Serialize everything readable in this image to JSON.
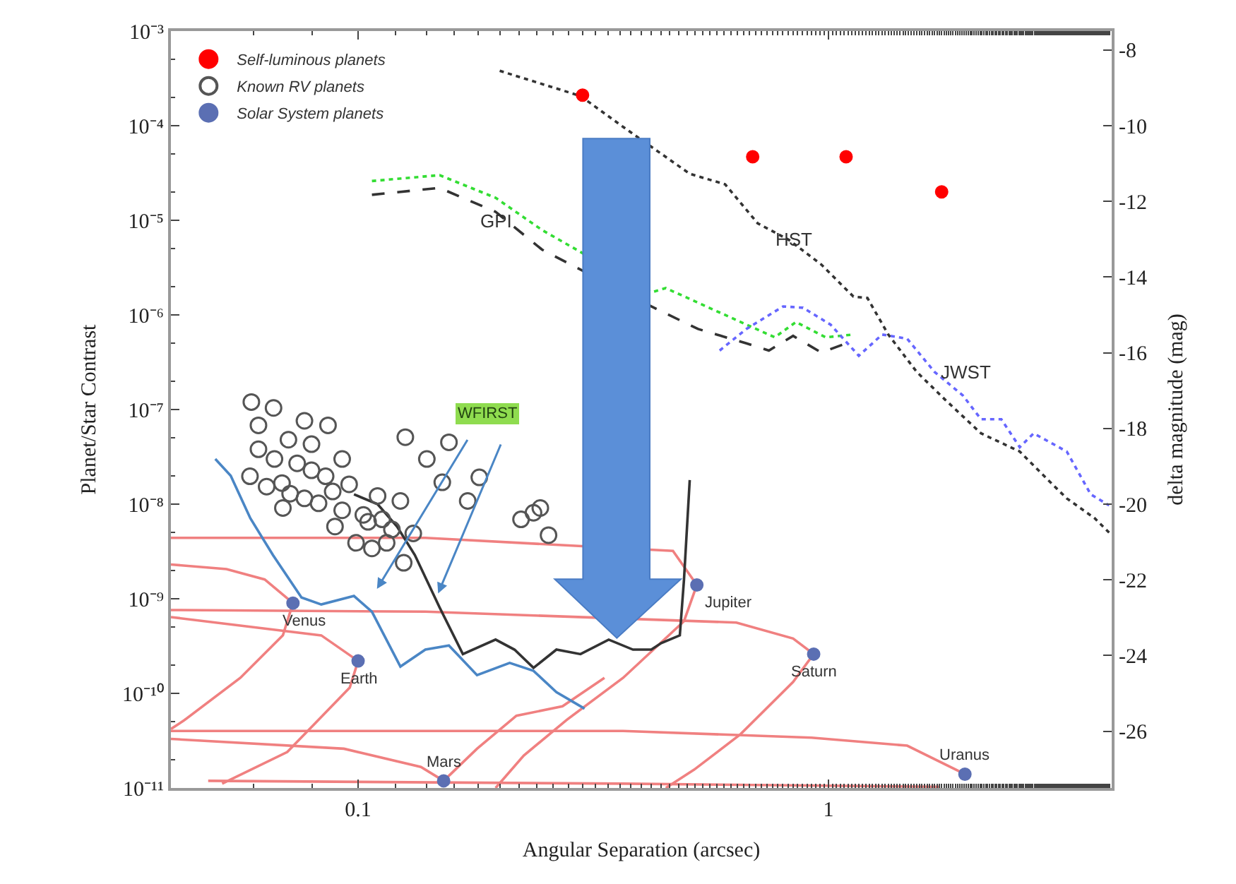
{
  "chart_data": {
    "type": "scatter",
    "xlabel": "Angular Separation (arcsec)",
    "ylabel": "Planet/Star Contrast",
    "y2label": "delta magnitude (mag)",
    "log": "xy",
    "legend": "top left",
    "xlim": [
      0.04,
      4
    ],
    "xticks": [
      0.1,
      1
    ],
    "ylim": [
      1e-11,
      0.001
    ],
    "yticks": [
      {
        "value": 0.001,
        "label": "10⁻³"
      },
      {
        "value": 0.0001,
        "label": "10⁻⁴"
      },
      {
        "value": 1e-05,
        "label": "10⁻⁵"
      },
      {
        "value": 1e-06,
        "label": "10⁻⁶"
      },
      {
        "value": 1e-07,
        "label": "10⁻⁷"
      },
      {
        "value": 1e-08,
        "label": "10⁻⁸"
      },
      {
        "value": 1e-09,
        "label": "10⁻⁹"
      },
      {
        "value": 1e-10,
        "label": "10⁻¹⁰"
      },
      {
        "value": 1e-11,
        "label": "10⁻¹¹"
      }
    ],
    "y2lim": [
      -27.5,
      -7.5
    ],
    "y2ticks": [
      -8,
      -10,
      -12,
      -14,
      -16,
      -18,
      -20,
      -22,
      -24,
      -26
    ],
    "series": [
      {
        "type": "line",
        "color": "#f08080",
        "line_style": "solid",
        "marker": "none",
        "x": [
          0.04,
          0.139,
          0.467,
          0.525,
          0.493,
          0.366,
          0.277,
          0.225,
          0.196
        ],
        "values": [
          4.4e-09,
          4.4e-09,
          3.2e-09,
          1.4e-09,
          5.8e-10,
          1.46e-10,
          5.2e-11,
          2.2e-11,
          1e-11
        ]
      },
      {
        "type": "line",
        "color": "#f08080",
        "line_style": "solid",
        "marker": "none",
        "x": [
          0.04,
          0.139,
          0.637,
          0.841,
          0.93,
          0.841,
          0.65,
          0.518,
          0.451
        ],
        "values": [
          7.6e-10,
          7.3e-10,
          5.6e-10,
          3.8e-10,
          2.6e-10,
          1.32e-10,
          3.7e-11,
          1.56e-11,
          1e-11
        ]
      },
      {
        "type": "line",
        "color": "#f08080",
        "line_style": "solid",
        "marker": "none",
        "x": [
          0.04,
          0.0525,
          0.0633,
          0.0727,
          0.0692,
          0.0562,
          0.0427,
          0.04
        ],
        "values": [
          2.3e-09,
          2.06e-09,
          1.6e-09,
          9e-10,
          4.1e-10,
          1.46e-10,
          5.2e-11,
          4.2e-11
        ]
      },
      {
        "type": "line",
        "color": "#f08080",
        "line_style": "solid",
        "marker": "none",
        "x": [
          0.04,
          0.0835,
          0.1,
          0.096,
          0.0707,
          0.0514
        ],
        "values": [
          6.4e-10,
          4.1e-10,
          2.2e-10,
          1.15e-10,
          2.4e-11,
          1.11e-11
        ]
      },
      {
        "type": "line",
        "color": "#f08080",
        "line_style": "solid",
        "marker": "none",
        "x": [
          0.04,
          0.366,
          0.92,
          1.47,
          1.95
        ],
        "values": [
          4e-11,
          4e-11,
          3.4e-11,
          2.8e-11,
          1.4e-11
        ]
      },
      {
        "type": "line",
        "color": "#f08080",
        "line_style": "solid",
        "marker": "none",
        "x": [
          0.04,
          0.0933,
          0.136,
          0.152,
          0.179,
          0.217,
          0.272,
          0.334
        ],
        "values": [
          3.3e-11,
          2.6e-11,
          1.67e-11,
          1.19e-11,
          2.6e-11,
          5.8e-11,
          7.3e-11,
          1.46e-10
        ]
      },
      {
        "type": "line",
        "color": "#f08080",
        "line_style": "solid",
        "marker": "none",
        "x": [
          0.048,
          0.366,
          1.72
        ],
        "values": [
          1.19e-11,
          1.11e-11,
          1.03e-11
        ]
      },
      {
        "type": "line",
        "color": "#333333",
        "line_style": "dotted",
        "marker": "none",
        "x": [
          0.2,
          0.297,
          0.366,
          0.507,
          0.603,
          0.707,
          0.824,
          0.966,
          1.13,
          1.21,
          1.34,
          1.54,
          1.77,
          2.11,
          2.55,
          2.93,
          3.21,
          3.68,
          3.95
        ],
        "values": [
          0.00038,
          0.000206,
          9.7e-05,
          3.1e-05,
          2.4e-05,
          9.3e-06,
          6.2e-06,
          3.4e-06,
          1.56e-06,
          1.51e-06,
          6.2e-07,
          2.5e-07,
          1.27e-07,
          5.6e-08,
          3.6e-08,
          1.8e-08,
          1.15e-08,
          7.1e-09,
          5e-09
        ]
      },
      {
        "type": "line",
        "color": "#333333",
        "line_style": "dashed",
        "marker": "none",
        "x": [
          0.107,
          0.149,
          0.196,
          0.246,
          0.42,
          0.528,
          0.669,
          0.747,
          0.841,
          0.966,
          1.09
        ],
        "values": [
          1.86e-05,
          2.2e-05,
          1.23e-05,
          4.9e-06,
          1.23e-06,
          7.1e-07,
          5e-07,
          4.2e-07,
          6e-07,
          4e-07,
          5e-07
        ]
      },
      {
        "type": "line",
        "color": "#33dd33",
        "line_style": "dotted",
        "marker": "none",
        "x": [
          0.107,
          0.149,
          0.196,
          0.246,
          0.42,
          0.451,
          0.669,
          0.769,
          0.853,
          0.986,
          1.13
        ],
        "values": [
          2.6e-05,
          3e-05,
          1.73e-05,
          7.9e-06,
          1.73e-06,
          1.92e-06,
          7.9e-07,
          5.8e-07,
          8.4e-07,
          5.8e-07,
          6.2e-07
        ]
      },
      {
        "type": "line",
        "color": "#6666ff",
        "line_style": "dotted",
        "marker": "none",
        "x": [
          0.587,
          0.669,
          0.801,
          0.883,
          1.01,
          1.16,
          1.3,
          1.47,
          1.68,
          1.93,
          2.11,
          2.33,
          2.55,
          2.73,
          3.21,
          3.61,
          3.95
        ],
        "values": [
          4.2e-07,
          7.1e-07,
          1.23e-06,
          1.19e-06,
          7.9e-07,
          3.7e-07,
          6.2e-07,
          5.6e-07,
          2.5e-07,
          1.41e-07,
          7.9e-08,
          7.9e-08,
          4e-08,
          5.6e-08,
          3.6e-08,
          1.27e-08,
          9.7e-09
        ]
      },
      {
        "type": "line",
        "color": "#333333",
        "line_style": "solid",
        "marker": "none",
        "x": [
          0.098,
          0.11,
          0.121,
          0.132,
          0.149,
          0.167,
          0.196,
          0.215,
          0.236,
          0.264,
          0.297,
          0.341,
          0.384,
          0.42,
          0.441,
          0.483,
          0.493,
          0.507
        ],
        "values": [
          1.27e-08,
          1e-08,
          5.8e-09,
          2.9e-09,
          8.1e-10,
          2.6e-10,
          3.7e-10,
          2.9e-10,
          1.86e-10,
          2.9e-10,
          2.6e-10,
          3.7e-10,
          2.9e-10,
          2.9e-10,
          3.4e-10,
          4.1e-10,
          1.6e-09,
          1.8e-08
        ]
      },
      {
        "type": "line",
        "color": "#4a86c5",
        "line_style": "solid",
        "marker": "none",
        "x": [
          0.0497,
          0.0536,
          0.059,
          0.0659,
          0.0758,
          0.0835,
          0.098,
          0.107,
          0.123,
          0.139,
          0.156,
          0.179,
          0.21,
          0.236,
          0.264,
          0.303
        ],
        "values": [
          3e-08,
          2e-08,
          7.1e-09,
          2.9e-09,
          1.03e-09,
          8.7e-10,
          1.07e-09,
          7.3e-10,
          1.92e-10,
          2.9e-10,
          3.2e-10,
          1.56e-10,
          2.1e-10,
          1.73e-10,
          1.03e-10,
          6.9e-11
        ]
      },
      {
        "name": "Self-luminous planets",
        "color": "#ff0000",
        "marker": "circle",
        "x": [
          0.3,
          0.69,
          1.09,
          1.74
        ],
        "values": [
          0.00021,
          4.7e-05,
          4.7e-05,
          2e-05
        ]
      },
      {
        "name": "Known RV planets",
        "color": "#555555",
        "marker": "circle-open",
        "x": [
          0.0593,
          0.0661,
          0.0614,
          0.0769,
          0.0863,
          0.0711,
          0.0796,
          0.0614,
          0.0664,
          0.0742,
          0.0925,
          0.0589,
          0.0639,
          0.0689,
          0.0796,
          0.0853,
          0.0957,
          0.0717,
          0.0769,
          0.0824,
          0.0883,
          0.0692,
          0.0893,
          0.0925,
          0.1026,
          0.11,
          0.105,
          0.1125,
          0.118,
          0.123,
          0.131,
          0.099,
          0.107,
          0.115,
          0.125,
          0.126,
          0.14,
          0.156,
          0.151,
          0.171,
          0.181,
          0.222,
          0.236,
          0.244,
          0.254
        ],
        "values": [
          1.2e-07,
          1.04e-07,
          6.8e-08,
          7.6e-08,
          6.8e-08,
          4.8e-08,
          4.3e-08,
          3.8e-08,
          3e-08,
          2.7e-08,
          3e-08,
          1.97e-08,
          1.53e-08,
          1.67e-08,
          2.28e-08,
          1.97e-08,
          1.62e-08,
          1.29e-08,
          1.15e-08,
          1.02e-08,
          1.36e-08,
          9.1e-09,
          5.8e-09,
          8.6e-09,
          7.7e-09,
          1.22e-08,
          6.5e-09,
          6.9e-09,
          5.4e-09,
          1.08e-08,
          4.9e-09,
          3.9e-09,
          3.4e-09,
          3.9e-09,
          2.4e-09,
          5.1e-08,
          3e-08,
          4.5e-08,
          1.7e-08,
          1.08e-08,
          1.92e-08,
          6.9e-09,
          8.1e-09,
          9.1e-09,
          4.7e-09
        ]
      },
      {
        "name": "Solar System planets",
        "color": "#5b6fb3",
        "marker": "circle",
        "x": [
          0.0727,
          0.1,
          0.152,
          0.525,
          0.93,
          1.95
        ],
        "values": [
          9e-10,
          2.2e-10,
          1.19e-11,
          1.4e-09,
          2.6e-10,
          1.4e-11
        ]
      }
    ],
    "annotations": [
      {
        "text": "GPI",
        "x": 0.196,
        "y": 1e-05
      },
      "HST",
      "JWST",
      "WFIRST",
      {
        "text": "Venus",
        "x": 0.0727,
        "y": 9e-10
      },
      {
        "text": "Earth",
        "x": 0.1,
        "y": 2.2e-10
      },
      {
        "text": "Mars",
        "x": 0.152,
        "y": 1.19e-11
      },
      {
        "text": "Jupiter",
        "x": 0.525,
        "y": 1.4e-09
      },
      {
        "text": "Saturn",
        "x": 0.93,
        "y": 2.6e-10
      },
      {
        "text": "Uranus",
        "x": 1.95,
        "y": 1.4e-11
      }
    ]
  }
}
